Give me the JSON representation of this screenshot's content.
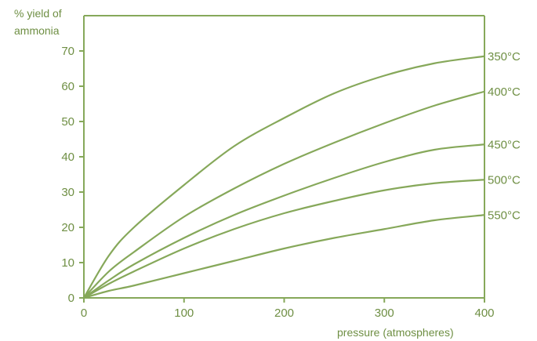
{
  "chart_data": {
    "type": "line",
    "ylabel": [
      "% yield of",
      "ammonia"
    ],
    "xlabel": "pressure (atmospheres)",
    "xlim": [
      0,
      400
    ],
    "ylim": [
      0,
      80
    ],
    "x_ticks": [
      0,
      100,
      200,
      300,
      400
    ],
    "y_ticks": [
      0,
      10,
      20,
      30,
      40,
      50,
      60,
      70
    ],
    "grid": false,
    "color": "#86a85a",
    "text_color": "#6f8f44",
    "series": [
      {
        "name": "350°C",
        "x": [
          0,
          25,
          50,
          100,
          150,
          200,
          250,
          300,
          350,
          400
        ],
        "y": [
          0,
          12,
          20,
          32,
          43,
          51,
          58,
          63,
          66.5,
          68.5
        ]
      },
      {
        "name": "400°C",
        "x": [
          0,
          25,
          50,
          100,
          150,
          200,
          250,
          300,
          350,
          400
        ],
        "y": [
          0,
          7.5,
          13,
          23,
          31,
          38,
          44,
          49.5,
          54.5,
          58.5
        ]
      },
      {
        "name": "450°C",
        "x": [
          0,
          25,
          50,
          100,
          150,
          200,
          250,
          300,
          350,
          400
        ],
        "y": [
          0,
          5,
          9.5,
          17,
          23.5,
          29,
          34,
          38.5,
          42,
          43.5
        ]
      },
      {
        "name": "500°C",
        "x": [
          0,
          25,
          50,
          100,
          150,
          200,
          250,
          300,
          350,
          400
        ],
        "y": [
          0,
          4,
          7.5,
          14,
          19.5,
          24,
          27.5,
          30.5,
          32.5,
          33.5
        ]
      },
      {
        "name": "550°C",
        "x": [
          0,
          25,
          50,
          100,
          150,
          200,
          250,
          300,
          350,
          400
        ],
        "y": [
          0,
          2,
          3.5,
          7,
          10.5,
          14,
          17,
          19.5,
          22,
          23.5
        ]
      }
    ]
  }
}
